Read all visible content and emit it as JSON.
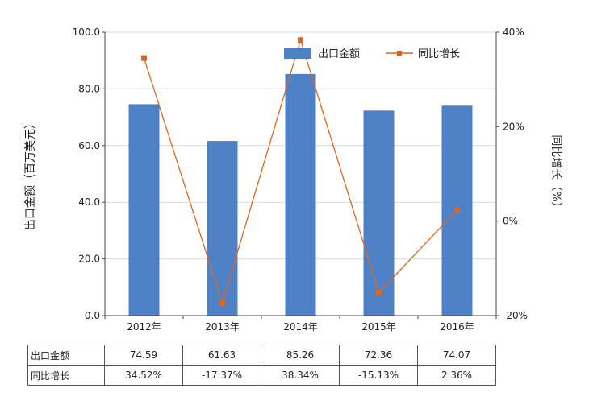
{
  "chart_data": {
    "type": "bar+line",
    "categories": [
      "2012年",
      "2013年",
      "2014年",
      "2015年",
      "2016年"
    ],
    "series": [
      {
        "name": "出口金额",
        "type": "bar",
        "axis": "left",
        "values": [
          74.59,
          61.63,
          85.26,
          72.36,
          74.07
        ],
        "color": "#4f81c7"
      },
      {
        "name": "同比增长",
        "type": "line",
        "axis": "right",
        "values": [
          34.52,
          -17.37,
          38.34,
          -15.13,
          2.36
        ],
        "color": "#e0661f"
      }
    ],
    "ylabel": "出口金额（百万美元）",
    "y2label": "同比增长（%）",
    "ylim": [
      0,
      100
    ],
    "y2lim": [
      -20,
      40
    ],
    "yticks": [
      "0.0",
      "20.0",
      "40.0",
      "60.0",
      "80.0",
      "100.0"
    ],
    "y2ticks": [
      "-20%",
      "0%",
      "20%",
      "40%"
    ],
    "grid": true,
    "legend_position": "top-right"
  },
  "table": {
    "rows": [
      {
        "label": "出口金额",
        "values": [
          "74.59",
          "61.63",
          "85.26",
          "72.36",
          "74.07"
        ]
      },
      {
        "label": "同比增长",
        "values": [
          "34.52%",
          "-17.37%",
          "38.34%",
          "-15.13%",
          "2.36%"
        ]
      }
    ]
  }
}
